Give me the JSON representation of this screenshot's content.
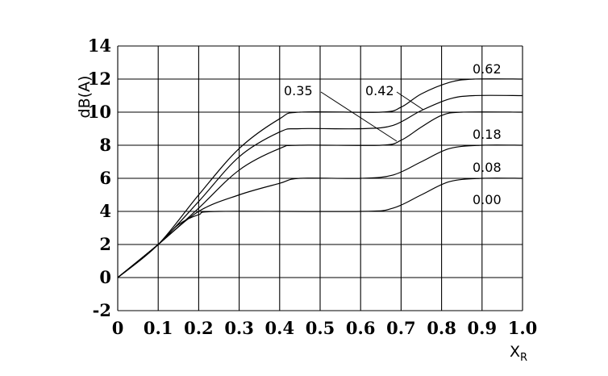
{
  "chart_data": {
    "type": "line",
    "title": "",
    "xlabel": "X",
    "xlabel_sub": "R",
    "ylabel": "dB(A)",
    "xlim": [
      0,
      1.0
    ],
    "ylim": [
      -2,
      14
    ],
    "x_ticks": [
      "0",
      "0.1",
      "0.2",
      "0.3",
      "0.4",
      "0.5",
      "0.6",
      "0.7",
      "0.8",
      "0.9",
      "1.0"
    ],
    "y_ticks": [
      "-2",
      "0",
      "2",
      "4",
      "6",
      "8",
      "10",
      "12",
      "14"
    ],
    "grid": true,
    "series": [
      {
        "name": "0.00",
        "points": [
          [
            0,
            0
          ],
          [
            0.1,
            2
          ],
          [
            0.15,
            3.2
          ],
          [
            0.2,
            3.8
          ],
          [
            0.25,
            4
          ],
          [
            0.6,
            4
          ],
          [
            0.68,
            4.2
          ],
          [
            0.75,
            5
          ],
          [
            0.82,
            5.8
          ],
          [
            0.9,
            6
          ],
          [
            1.0,
            6
          ]
        ]
      },
      {
        "name": "0.08",
        "points": [
          [
            0,
            0
          ],
          [
            0.1,
            2
          ],
          [
            0.2,
            4
          ],
          [
            0.3,
            5
          ],
          [
            0.4,
            5.7
          ],
          [
            0.45,
            6
          ],
          [
            0.6,
            6
          ],
          [
            0.68,
            6.2
          ],
          [
            0.75,
            7
          ],
          [
            0.82,
            7.8
          ],
          [
            0.9,
            8
          ],
          [
            1.0,
            8
          ]
        ]
      },
      {
        "name": "0.18",
        "points": [
          [
            0,
            0
          ],
          [
            0.1,
            2
          ],
          [
            0.2,
            4.2
          ],
          [
            0.3,
            6.5
          ],
          [
            0.4,
            7.8
          ],
          [
            0.45,
            8
          ],
          [
            0.65,
            8
          ],
          [
            0.7,
            8.3
          ],
          [
            0.75,
            9.1
          ],
          [
            0.8,
            9.8
          ],
          [
            0.85,
            10
          ],
          [
            1.0,
            10
          ]
        ]
      },
      {
        "name": "0.35",
        "points": [
          [
            0,
            0
          ],
          [
            0.1,
            2
          ],
          [
            0.2,
            4.6
          ],
          [
            0.3,
            7.3
          ],
          [
            0.4,
            8.8
          ],
          [
            0.45,
            9
          ],
          [
            0.6,
            9
          ],
          [
            0.68,
            9.2
          ],
          [
            0.75,
            10.1
          ],
          [
            0.82,
            10.8
          ],
          [
            0.88,
            11
          ],
          [
            1.0,
            11
          ]
        ]
      },
      {
        "name": "0.42",
        "points": [
          [
            0,
            0
          ],
          [
            0.1,
            2
          ],
          [
            0.2,
            5
          ],
          [
            0.3,
            7.8
          ],
          [
            0.4,
            9.6
          ],
          [
            0.45,
            10
          ],
          [
            0.65,
            10
          ],
          [
            0.7,
            10.3
          ],
          [
            0.75,
            11.1
          ],
          [
            0.82,
            11.8
          ],
          [
            0.88,
            12
          ],
          [
            1.0,
            12
          ]
        ]
      },
      {
        "name": "0.62",
        "points": []
      }
    ],
    "labels": [
      "0.62",
      "0.42",
      "0.35",
      "0.18",
      "0.08",
      "0.00"
    ]
  }
}
